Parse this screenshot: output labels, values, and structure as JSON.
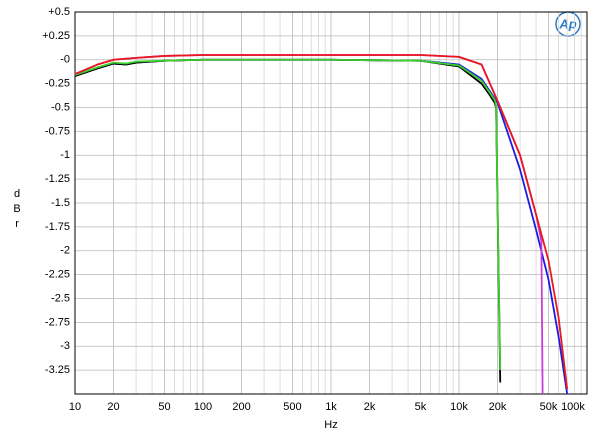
{
  "chart_data": {
    "type": "line",
    "xlabel": "Hz",
    "ylabel": "dBr",
    "logo": "Ap",
    "xscale": "log",
    "grid": true,
    "xlim": [
      10,
      100000
    ],
    "ylim": [
      -3.5,
      0.5
    ],
    "xticks": [
      10,
      20,
      50,
      100,
      200,
      500,
      {
        "value": 1000,
        "label": "1k"
      },
      {
        "value": 2000,
        "label": "2k"
      },
      {
        "value": 5000,
        "label": "5k"
      },
      {
        "value": 10000,
        "label": "10k"
      },
      {
        "value": 20000,
        "label": "20k"
      },
      {
        "value": 50000,
        "label": "50k"
      },
      {
        "value": 100000,
        "label": "100k"
      }
    ],
    "xminorticks": [
      30,
      40,
      60,
      70,
      80,
      90,
      300,
      400,
      600,
      700,
      800,
      900,
      3000,
      4000,
      6000,
      7000,
      8000,
      9000,
      30000,
      40000,
      60000,
      70000,
      80000,
      90000
    ],
    "yticks": [
      {
        "value": 0.5,
        "label": "+0.5"
      },
      {
        "value": 0.25,
        "label": "+0.25"
      },
      {
        "value": 0,
        "label": "-0"
      },
      -0.25,
      -0.5,
      -0.75,
      -1,
      -1.25,
      -1.5,
      -1.75,
      -2,
      -2.25,
      -2.5,
      -2.75,
      -3,
      -3.25
    ],
    "series": [
      {
        "name": "blue",
        "color": "#1c1ce0",
        "x": [
          10,
          15,
          20,
          25,
          30,
          50,
          100,
          1000,
          5000,
          10000,
          15000,
          20000,
          30000,
          40000,
          50000,
          60000,
          70000
        ],
        "values": [
          -0.17,
          -0.09,
          -0.04,
          -0.05,
          -0.03,
          -0.01,
          0,
          0,
          -0.01,
          -0.05,
          -0.2,
          -0.45,
          -1.15,
          -1.78,
          -2.3,
          -2.9,
          -3.5
        ]
      },
      {
        "name": "black",
        "color": "#000000",
        "x": [
          10,
          15,
          20,
          25,
          30,
          50,
          100,
          1000,
          5000,
          10000,
          15000,
          17000,
          19000,
          19500,
          20000,
          21000
        ],
        "values": [
          -0.17,
          -0.09,
          -0.04,
          -0.05,
          -0.03,
          -0.01,
          0,
          0,
          -0.01,
          -0.07,
          -0.25,
          -0.35,
          -0.45,
          -0.5,
          -1.5,
          -3.38
        ]
      },
      {
        "name": "green",
        "color": "#3ccf2c",
        "x": [
          10,
          15,
          20,
          25,
          30,
          50,
          100,
          1000,
          5000,
          10000,
          15000,
          19000,
          19500,
          20000,
          21000
        ],
        "values": [
          -0.16,
          -0.08,
          -0.03,
          -0.04,
          -0.02,
          -0.01,
          0,
          0,
          -0.01,
          -0.06,
          -0.22,
          -0.42,
          -0.48,
          -1.5,
          -3.25
        ]
      },
      {
        "name": "magenta",
        "color": "#c83cd8",
        "x": [
          10,
          15,
          20,
          30,
          50,
          100,
          1000,
          5000,
          10000,
          15000,
          20000,
          30000,
          40000,
          44000,
          45000
        ],
        "values": [
          -0.15,
          -0.05,
          0,
          0.02,
          0.04,
          0.05,
          0.05,
          0.05,
          0.03,
          -0.05,
          -0.43,
          -1.0,
          -1.62,
          -1.9,
          -3.5
        ]
      },
      {
        "name": "red",
        "color": "#e8191e",
        "x": [
          10,
          15,
          20,
          30,
          50,
          100,
          1000,
          5000,
          10000,
          15000,
          20000,
          30000,
          40000,
          50000,
          60000,
          70000
        ],
        "values": [
          -0.15,
          -0.05,
          0,
          0.02,
          0.04,
          0.05,
          0.05,
          0.05,
          0.03,
          -0.05,
          -0.43,
          -1.0,
          -1.62,
          -2.1,
          -2.7,
          -3.45
        ]
      }
    ]
  }
}
